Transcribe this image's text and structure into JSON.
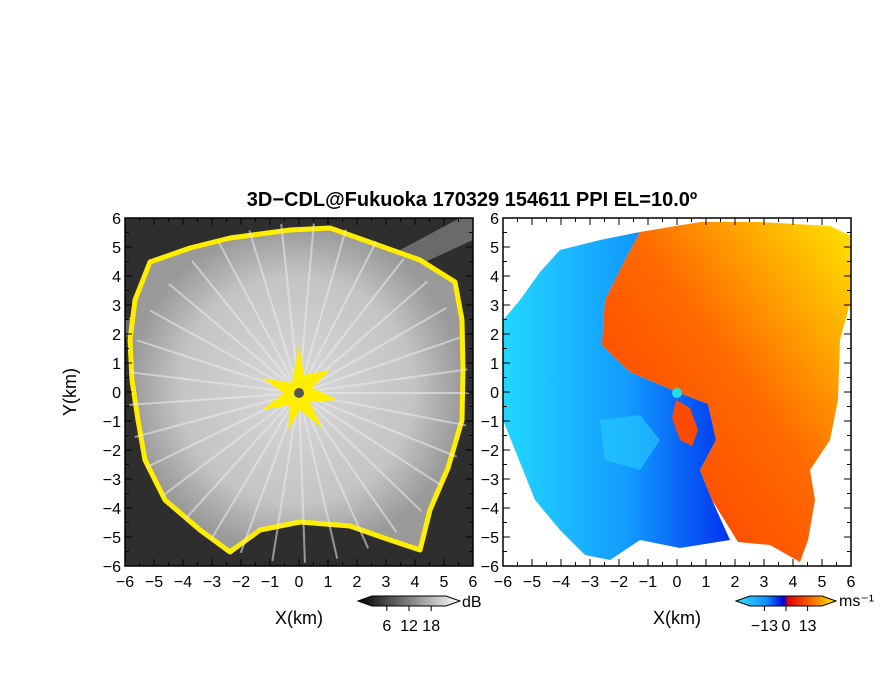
{
  "chart_data": {
    "type": "heatmap",
    "title": "3D−CDL@Fukuoka 170329 154611 PPI EL=10.0º",
    "panels": [
      {
        "id": "reflectivity",
        "xlabel": "X(km)",
        "ylabel": "Y(km)",
        "xlim": [
          -6,
          6
        ],
        "ylim": [
          -6,
          6
        ],
        "xticks": [
          "−6",
          "−5",
          "−4",
          "−3",
          "−2",
          "−1",
          "0",
          "1",
          "2",
          "3",
          "4",
          "5",
          "6"
        ],
        "yticks": [
          "6",
          "5",
          "4",
          "3",
          "2",
          "1",
          "0",
          "−1",
          "−2",
          "−3",
          "−4",
          "−5",
          "−6"
        ],
        "colorbar": {
          "unit": "dB",
          "ticks": [
            "6",
            "12",
            "18"
          ],
          "colormap": "greyscale",
          "highlight_color": "#ffee00"
        }
      },
      {
        "id": "doppler-velocity",
        "xlabel": "X(km)",
        "ylabel": "",
        "xlim": [
          -6,
          6
        ],
        "ylim": [
          -6,
          6
        ],
        "xticks": [
          "−6",
          "−5",
          "−4",
          "−3",
          "−2",
          "−1",
          "0",
          "1",
          "2",
          "3",
          "4",
          "5",
          "6"
        ],
        "yticks": [
          "6",
          "5",
          "4",
          "3",
          "2",
          "1",
          "0",
          "−1",
          "−2",
          "−3",
          "−4",
          "−5",
          "−6"
        ],
        "colorbar": {
          "unit": "ms⁻¹",
          "ticks": [
            "−13",
            "0",
            "13"
          ],
          "colormap": "cyan-blue-red-yellow"
        }
      }
    ]
  }
}
